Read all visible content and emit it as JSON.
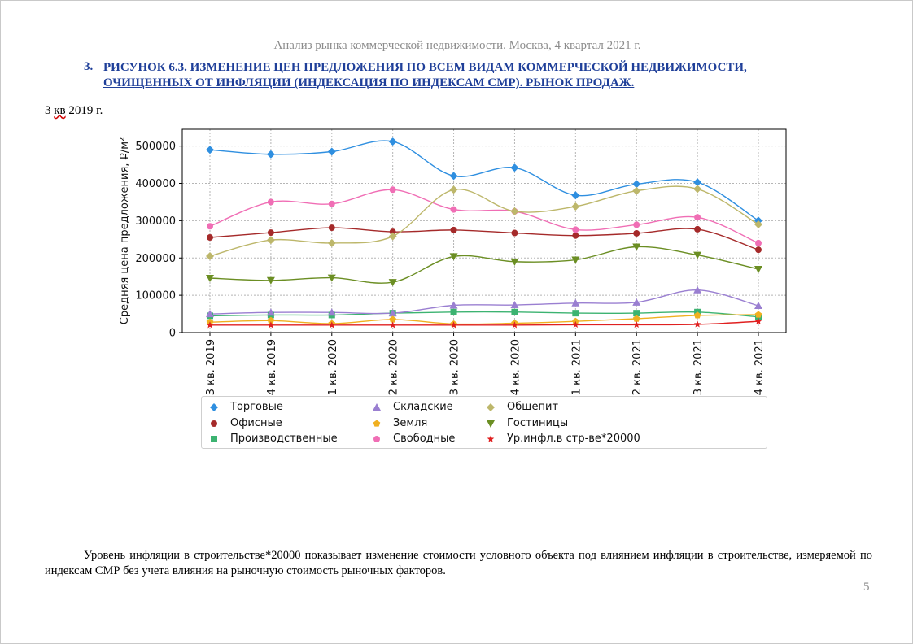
{
  "header": {
    "running_title": "Анализ рынка коммерческой недвижимости.  Москва, 4 квартал 2021 г."
  },
  "figure": {
    "number": "3.",
    "title": "РИСУНОК 6.3. ИЗМЕНЕНИЕ ЦЕН ПРЕДЛОЖЕНИЯ ПО ВСЕМ ВИДАМ КОММЕРЧЕСКОЙ НЕДВИЖИМОСТИ, ОЧИЩЕННЫХ ОТ ИНФЛЯЦИИ (ИНДЕКСАЦИЯ ПО ИНДЕКСАМ СМР). РЫНОК ПРОДАЖ.",
    "period_prefix": "3 ",
    "period_marked": "кв",
    "period_suffix": " 2019 г."
  },
  "chart_data": {
    "type": "line",
    "ylabel": "Средняя цена предложения, ₽/м²",
    "xlabel": "",
    "ylim": [
      0,
      545000
    ],
    "yticks": [
      0,
      100000,
      200000,
      300000,
      400000,
      500000
    ],
    "grid": true,
    "legend_position": "below",
    "categories": [
      "3 кв. 2019",
      "4 кв. 2019",
      "1 кв. 2020",
      "2 кв. 2020",
      "3 кв. 2020",
      "4 кв. 2020",
      "1 кв. 2021",
      "2 кв. 2021",
      "3 кв. 2021",
      "4 кв. 2021"
    ],
    "series": [
      {
        "name": "Торговые",
        "color": "#2f8fe0",
        "marker": "diamond",
        "values": [
          490000,
          478000,
          485000,
          512000,
          420000,
          442000,
          368000,
          398000,
          403000,
          300000
        ]
      },
      {
        "name": "Офисные",
        "color": "#a52a2a",
        "marker": "circle",
        "values": [
          255000,
          268000,
          281000,
          270000,
          275000,
          267000,
          260000,
          266000,
          277000,
          222000
        ]
      },
      {
        "name": "Производственные",
        "color": "#3cb371",
        "marker": "square",
        "values": [
          45000,
          47000,
          47000,
          52000,
          55000,
          55000,
          52000,
          52000,
          55000,
          42000
        ]
      },
      {
        "name": "Складские",
        "color": "#9a7fd1",
        "marker": "triangle-up",
        "values": [
          50000,
          54000,
          54000,
          52000,
          73000,
          74000,
          79000,
          81000,
          114000,
          72000
        ]
      },
      {
        "name": "Земля",
        "color": "#f0b020",
        "marker": "pentagon",
        "values": [
          28000,
          32000,
          24000,
          35000,
          23000,
          25000,
          30000,
          37000,
          46000,
          48000
        ]
      },
      {
        "name": "Свободные",
        "color": "#f06eb5",
        "marker": "circle",
        "values": [
          285000,
          350000,
          345000,
          383000,
          330000,
          325000,
          276000,
          289000,
          309000,
          240000
        ]
      },
      {
        "name": "Общепит",
        "color": "#bdb76b",
        "marker": "diamond",
        "values": [
          205000,
          248000,
          240000,
          258000,
          383000,
          325000,
          338000,
          380000,
          385000,
          290000
        ]
      },
      {
        "name": "Гостиницы",
        "color": "#6b8e23",
        "marker": "triangle-down",
        "values": [
          146000,
          140000,
          147000,
          135000,
          204000,
          190000,
          195000,
          230000,
          208000,
          170000
        ]
      },
      {
        "name": "Ур.инфл.в стр-ве*20000",
        "color": "#e02020",
        "marker": "star",
        "values": [
          20000,
          20000,
          20000,
          20000,
          20000,
          20000,
          21000,
          21000,
          22000,
          30000
        ]
      }
    ]
  },
  "body": {
    "note": "Уровень инфляции в строительстве*20000 показывает изменение стоимости условного объекта под влиянием инфляции в строительстве, измеряемой по индексам СМР без учета влияния на рыночную стоимость рыночных факторов.",
    "page_number": "5"
  }
}
